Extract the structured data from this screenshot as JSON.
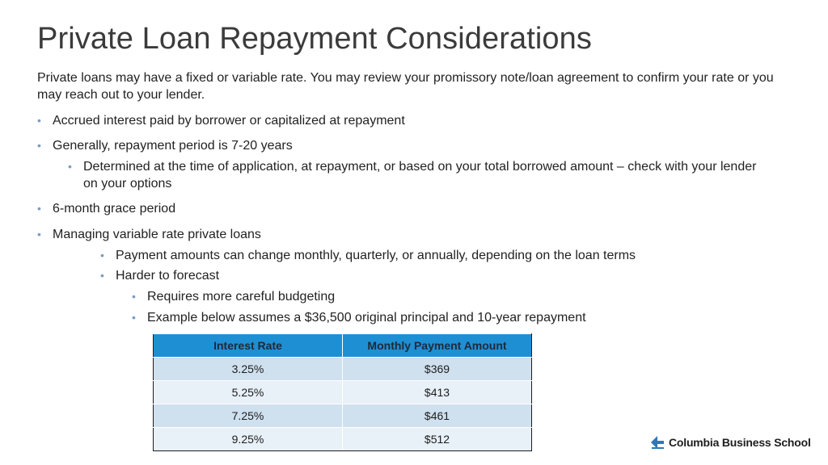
{
  "slide": {
    "title": "Private Loan Repayment Considerations",
    "intro": "Private loans may have a fixed or variable rate. You may review your promissory note/loan agreement to confirm your rate or you may reach out to your lender.",
    "bullets": [
      {
        "text": "Accrued interest paid by borrower or capitalized at repayment"
      },
      {
        "text": "Generally, repayment period is 7-20 years"
      },
      {
        "text": "Determined at the time of application, at repayment, or based on your total borrowed amount – check with your lender on your options"
      },
      {
        "text": "6-month grace period"
      },
      {
        "text": "Managing variable rate private loans"
      },
      {
        "text": "Payment amounts can change monthly, quarterly, or annually, depending on the loan terms"
      },
      {
        "text": "Harder to forecast"
      },
      {
        "text": "Requires more careful budgeting"
      },
      {
        "text": "Example below assumes a $36,500 original principal and 10-year repayment"
      }
    ],
    "bullet_glyph": "•"
  },
  "table": {
    "headers": [
      "Interest Rate",
      "Monthly Payment Amount"
    ],
    "rows": [
      [
        "3.25%",
        "$369"
      ],
      [
        "5.25%",
        "$413"
      ],
      [
        "7.25%",
        "$461"
      ],
      [
        "9.25%",
        "$512"
      ]
    ]
  },
  "logo": {
    "text": "Columbia Business School",
    "icon": "columbia-crown-icon"
  },
  "colors": {
    "title": "#3b3b3b",
    "bullet_dot": "#7b9cc5",
    "table_header": "#1f8fd3",
    "table_row_odd": "#cfe0ef",
    "table_row_even": "#e8f0f8"
  }
}
